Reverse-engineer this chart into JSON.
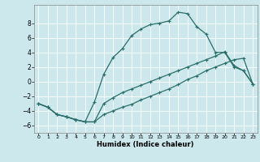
{
  "xlabel": "Humidex (Indice chaleur)",
  "background_color": "#cce8ed",
  "grid_color": "#ffffff",
  "line_color": "#2a6e6a",
  "xlim": [
    -0.5,
    23.5
  ],
  "ylim": [
    -7,
    10.5
  ],
  "xticks": [
    0,
    1,
    2,
    3,
    4,
    5,
    6,
    7,
    8,
    9,
    10,
    11,
    12,
    13,
    14,
    15,
    16,
    17,
    18,
    19,
    20,
    21,
    22,
    23
  ],
  "yticks": [
    -6,
    -4,
    -2,
    0,
    2,
    4,
    6,
    8
  ],
  "line_top_x": [
    0,
    1,
    2,
    3,
    4,
    5,
    6,
    7,
    8,
    9,
    10,
    11,
    12,
    13,
    14,
    15,
    16,
    17,
    18,
    19,
    20,
    21,
    22,
    23
  ],
  "line_top_y": [
    -3,
    -3.5,
    -4.5,
    -4.8,
    -5.2,
    -5.5,
    -2.8,
    1.0,
    3.3,
    4.5,
    6.3,
    7.2,
    7.8,
    8.0,
    8.3,
    9.5,
    9.3,
    7.5,
    6.5,
    4.0,
    4.0,
    2.0,
    1.5,
    -0.3
  ],
  "line_mid_x": [
    0,
    1,
    2,
    3,
    4,
    5,
    6,
    7,
    8,
    9,
    10,
    11,
    12,
    13,
    14,
    15,
    16,
    17,
    18,
    19,
    20,
    21,
    22,
    23
  ],
  "line_mid_y": [
    -3,
    -3.5,
    -4.5,
    -4.8,
    -5.2,
    -5.5,
    -5.5,
    -4.5,
    -4.0,
    -3.5,
    -3.1,
    -2.5,
    -2.0,
    -1.5,
    -1.0,
    -0.4,
    0.3,
    0.8,
    1.5,
    2.0,
    2.5,
    3.0,
    3.2,
    -0.3
  ],
  "line_bot_x": [
    0,
    1,
    2,
    3,
    4,
    5,
    6,
    7,
    8,
    9,
    10,
    11,
    12,
    13,
    14,
    15,
    16,
    17,
    18,
    19,
    20,
    21,
    22,
    23
  ],
  "line_bot_y": [
    -3,
    -3.5,
    -4.5,
    -4.8,
    -5.2,
    -5.5,
    -5.5,
    -3.0,
    -2.2,
    -1.5,
    -1.0,
    -0.5,
    0.0,
    0.5,
    1.0,
    1.5,
    2.0,
    2.5,
    3.0,
    3.5,
    4.1,
    2.2,
    1.5,
    -0.3
  ]
}
